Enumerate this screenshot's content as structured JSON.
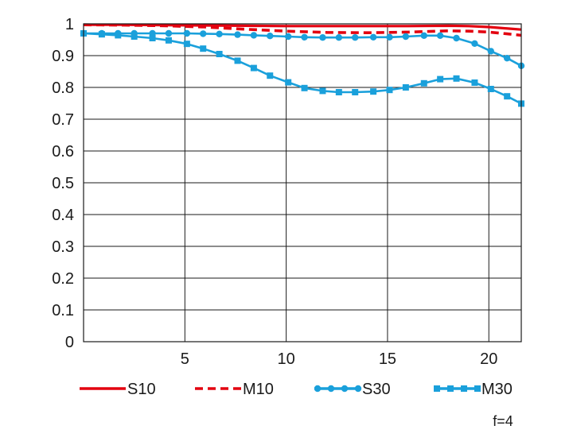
{
  "chart_data": {
    "type": "line",
    "title": "",
    "xlabel": "",
    "ylabel": "",
    "xlim": [
      0,
      21.6
    ],
    "ylim": [
      0,
      1
    ],
    "x_ticks": [
      5,
      10,
      15,
      20
    ],
    "y_ticks": [
      0,
      0.1,
      0.2,
      0.3,
      0.4,
      0.5,
      0.6,
      0.7,
      0.8,
      0.9,
      1
    ],
    "y_tick_labels": [
      "0",
      "0.1",
      "0.2",
      "0.3",
      "0.4",
      "0.5",
      "0.6",
      "0.7",
      "0.8",
      "0.9",
      "1"
    ],
    "grid": true,
    "legend_position": "bottom",
    "annotation": "f=4",
    "series": [
      {
        "name": "S10",
        "color": "#e3000f",
        "style": "solid",
        "x": [
          0,
          2,
          4,
          6,
          8,
          10,
          12,
          14,
          16,
          18,
          19,
          20,
          21,
          21.6
        ],
        "y": [
          0.997,
          0.997,
          0.996,
          0.995,
          0.994,
          0.993,
          0.993,
          0.993,
          0.993,
          0.994,
          0.993,
          0.99,
          0.985,
          0.982
        ]
      },
      {
        "name": "M10",
        "color": "#e3000f",
        "style": "dashed",
        "x": [
          0,
          2,
          4,
          6,
          8,
          10,
          12,
          14,
          16,
          18,
          19,
          20,
          21,
          21.6
        ],
        "y": [
          0.997,
          0.996,
          0.994,
          0.99,
          0.983,
          0.977,
          0.973,
          0.972,
          0.974,
          0.978,
          0.977,
          0.974,
          0.968,
          0.964
        ]
      },
      {
        "name": "S30",
        "color": "#1aa0db",
        "style": "circles",
        "x": [
          0,
          0.9,
          1.7,
          2.5,
          3.4,
          4.2,
          5.1,
          5.9,
          6.7,
          7.6,
          8.4,
          9.2,
          10.1,
          10.9,
          11.8,
          12.6,
          13.4,
          14.3,
          15.1,
          15.9,
          16.8,
          17.6,
          18.4,
          19.3,
          20.1,
          20.9,
          21.6
        ],
        "y": [
          0.97,
          0.97,
          0.97,
          0.97,
          0.97,
          0.97,
          0.97,
          0.969,
          0.968,
          0.966,
          0.964,
          0.962,
          0.96,
          0.958,
          0.957,
          0.957,
          0.957,
          0.958,
          0.958,
          0.96,
          0.963,
          0.963,
          0.955,
          0.938,
          0.914,
          0.892,
          0.868
        ]
      },
      {
        "name": "M30",
        "color": "#1aa0db",
        "style": "squares",
        "x": [
          0,
          0.9,
          1.7,
          2.5,
          3.4,
          4.2,
          5.1,
          5.9,
          6.7,
          7.6,
          8.4,
          9.2,
          10.1,
          10.9,
          11.8,
          12.6,
          13.4,
          14.3,
          15.1,
          15.9,
          16.8,
          17.6,
          18.4,
          19.3,
          20.1,
          20.9,
          21.6
        ],
        "y": [
          0.97,
          0.967,
          0.964,
          0.96,
          0.955,
          0.948,
          0.937,
          0.922,
          0.905,
          0.884,
          0.861,
          0.837,
          0.816,
          0.798,
          0.789,
          0.785,
          0.785,
          0.787,
          0.792,
          0.8,
          0.813,
          0.826,
          0.828,
          0.815,
          0.795,
          0.772,
          0.749
        ]
      }
    ]
  }
}
